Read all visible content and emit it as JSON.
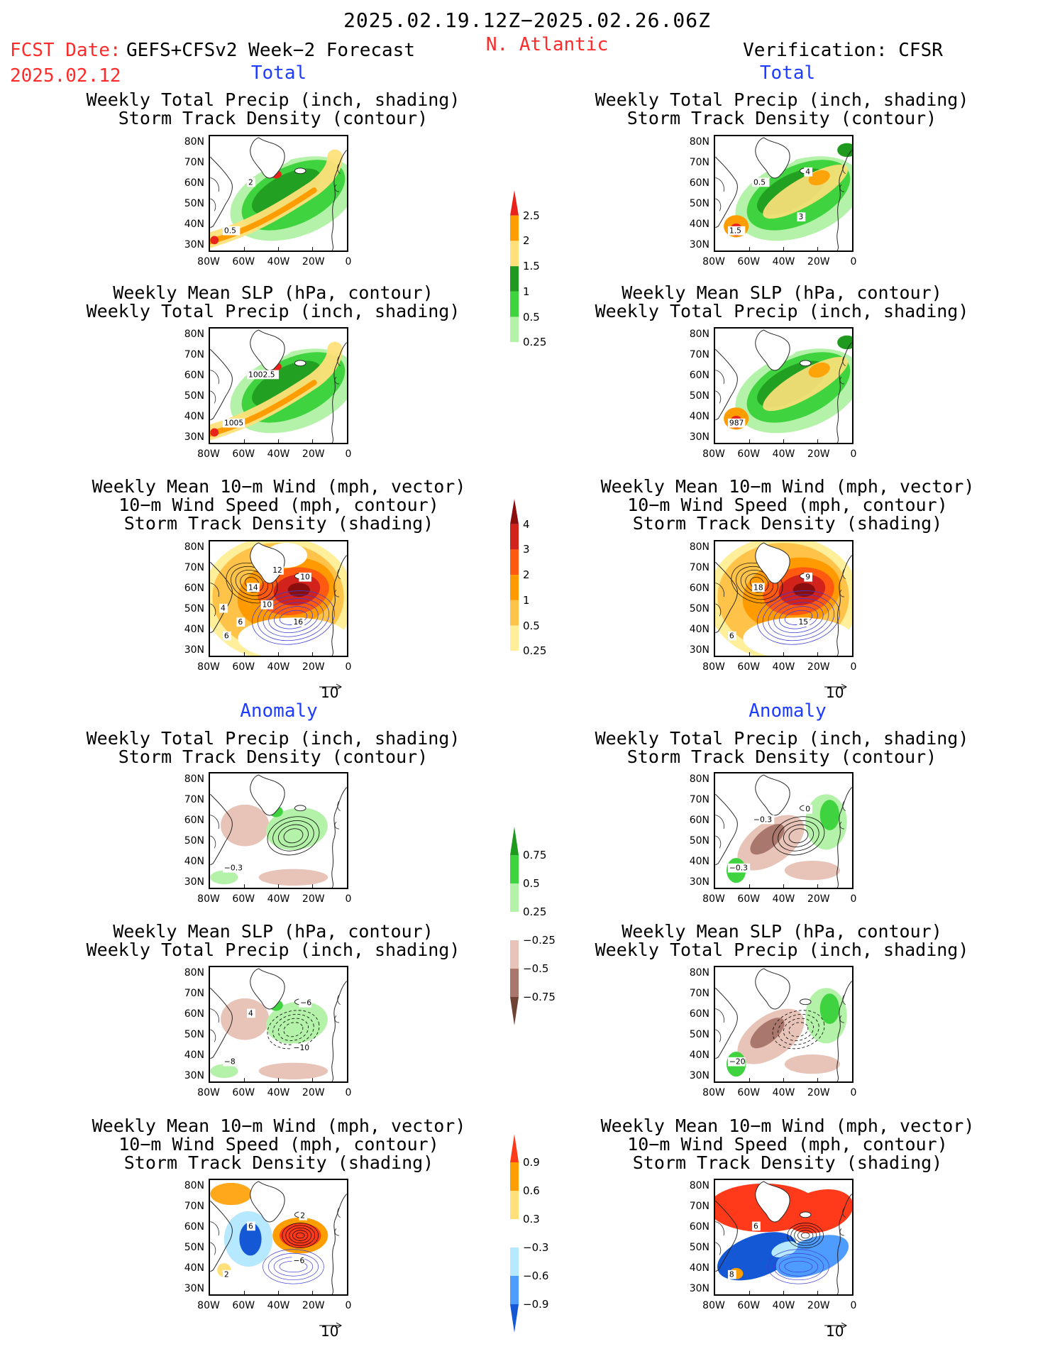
{
  "header": {
    "date_range": "2025.02.19.12Z−2025.02.26.06Z",
    "fcst_label": "FCST Date:",
    "fcst_product": "GEFS+CFSv2 Week−2 Forecast",
    "fcst_date": "2025.02.12",
    "region": "N. Atlantic",
    "verification": "Verification: CFSR"
  },
  "sections": {
    "total": "Total",
    "anomaly": "Anomaly"
  },
  "panel_titles": {
    "precip_storm": [
      "Weekly Total Precip (inch, shading)",
      "Storm Track Density (contour)"
    ],
    "slp_precip": [
      "Weekly Mean SLP (hPa, contour)",
      "Weekly Total Precip (inch, shading)"
    ],
    "wind_storm": [
      "Weekly Mean 10−m Wind (mph, vector)",
      "10−m Wind Speed (mph, contour)",
      "Storm Track Density (shading)"
    ]
  },
  "axes": {
    "lat_labels": [
      "80N",
      "70N",
      "60N",
      "50N",
      "40N",
      "30N"
    ],
    "lon_labels": [
      "80W",
      "60W",
      "40W",
      "20W",
      "0"
    ]
  },
  "vector_ref": "10",
  "colorbars": {
    "precip_total": {
      "labels": [
        "2.5",
        "2",
        "1.5",
        "1",
        "0.5",
        "0.25"
      ],
      "colors": [
        "#e8231c",
        "#ff9d00",
        "#ffe07a",
        "#1f9a1f",
        "#3fd33f",
        "#b3f2a8",
        "#ffffff"
      ]
    },
    "storm_total": {
      "labels": [
        "4",
        "3",
        "2",
        "1",
        "0.5",
        "0.25"
      ],
      "colors": [
        "#8a0e0e",
        "#d1231c",
        "#ff5a10",
        "#ff9b00",
        "#ffc34a",
        "#ffef9a",
        "#ffffff"
      ]
    },
    "precip_anom": {
      "labels": [
        "0.75",
        "0.5",
        "0.25",
        "−0.25",
        "−0.5",
        "−0.75"
      ],
      "colors": [
        "#1f9a1f",
        "#3fd33f",
        "#b3f2a8",
        "#ffffff",
        "#e7c3b8",
        "#a9776c",
        "#6e4334"
      ]
    },
    "storm_anom": {
      "labels": [
        "0.9",
        "0.6",
        "0.3",
        "−0.3",
        "−0.6",
        "−0.9"
      ],
      "colors": [
        "#ff3a1a",
        "#ff9e00",
        "#ffe07a",
        "#ffffff",
        "#b6e8ff",
        "#4f9cff",
        "#1458d6"
      ]
    }
  },
  "contour_labels": {
    "f_precip_total": [
      "0.5",
      "2"
    ],
    "v_precip_total": [
      "1.5",
      "0.5",
      "4",
      "3"
    ],
    "f_slp_total": [
      "1005",
      "1002.5"
    ],
    "v_slp_total": [
      "987"
    ],
    "f_wind_total": [
      "6",
      "14",
      "10",
      "16",
      "4",
      "6",
      "10",
      "12"
    ],
    "v_wind_total": [
      "6",
      "18",
      "9",
      "15"
    ],
    "f_precip_anom": [
      "−0.3"
    ],
    "v_precip_anom": [
      "−0.3",
      "−0.3",
      "0"
    ],
    "f_slp_anom": [
      "−8",
      "4",
      "−6",
      "−10"
    ],
    "v_slp_anom": [
      "−20"
    ],
    "f_wind_anom": [
      "2",
      "6",
      "2",
      "−6"
    ],
    "v_wind_anom": [
      "8",
      "6"
    ]
  }
}
